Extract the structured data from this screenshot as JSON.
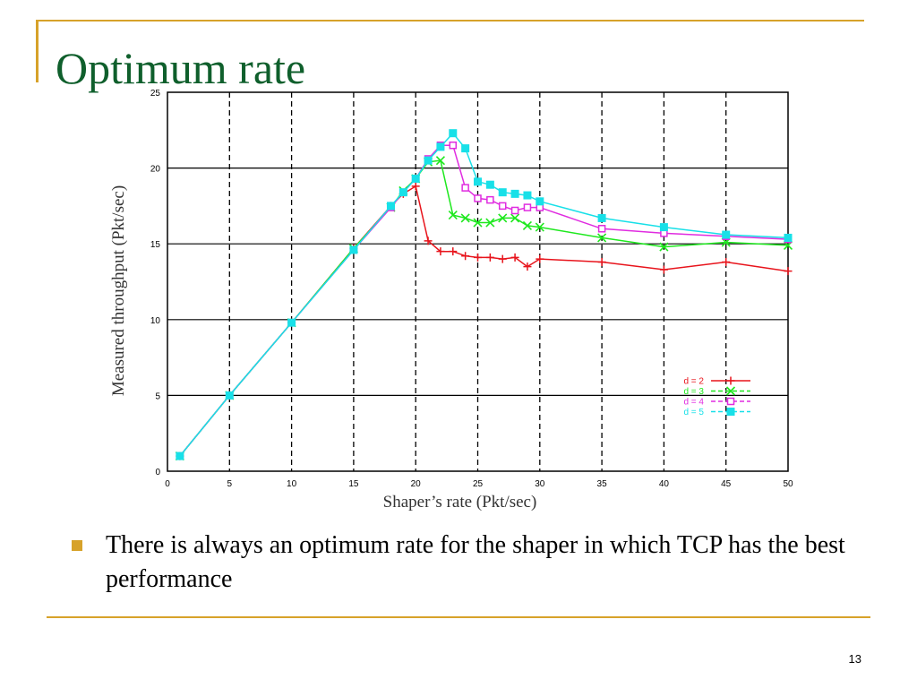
{
  "slide": {
    "title": "Optimum rate",
    "bullet": "There is always an optimum rate for the shaper in which TCP has the best performance",
    "page_number": "13",
    "accent_color": "#d7a22a",
    "title_color": "#0f5f2c"
  },
  "chart_data": {
    "type": "line",
    "title": "",
    "xlabel": "Shaper’s rate (Pkt/sec)",
    "ylabel": "Measured throughput (Pkt/sec)",
    "xlim": [
      0,
      50
    ],
    "ylim": [
      0,
      25
    ],
    "xticks": [
      "0",
      "5",
      "10",
      "15",
      "20",
      "25",
      "30",
      "35",
      "40",
      "45",
      "50"
    ],
    "yticks": [
      "0",
      "5",
      "10",
      "15",
      "20",
      "25"
    ],
    "grid": {
      "horizontal": "solid",
      "vertical": "dashed"
    },
    "legend_position": "bottom-right",
    "series": [
      {
        "name": "d = 2",
        "color": "#e8141c",
        "marker": "plus",
        "points": [
          [
            1,
            1
          ],
          [
            5,
            5
          ],
          [
            10,
            9.8
          ],
          [
            15,
            14.7
          ],
          [
            18,
            17.5
          ],
          [
            19,
            18.3
          ],
          [
            20,
            18.8
          ],
          [
            21,
            15.2
          ],
          [
            22,
            14.5
          ],
          [
            23,
            14.5
          ],
          [
            24,
            14.2
          ],
          [
            25,
            14.1
          ],
          [
            26,
            14.1
          ],
          [
            27,
            14
          ],
          [
            28,
            14.1
          ],
          [
            29,
            13.5
          ],
          [
            30,
            14
          ],
          [
            35,
            13.8
          ],
          [
            40,
            13.3
          ],
          [
            45,
            13.8
          ],
          [
            50,
            13.2
          ]
        ]
      },
      {
        "name": "d = 3",
        "color": "#1ee81e",
        "marker": "x",
        "points": [
          [
            1,
            1
          ],
          [
            5,
            5
          ],
          [
            10,
            9.8
          ],
          [
            15,
            14.7
          ],
          [
            18,
            17.4
          ],
          [
            19,
            18.5
          ],
          [
            20,
            19.3
          ],
          [
            21,
            20.4
          ],
          [
            22,
            20.5
          ],
          [
            23,
            16.9
          ],
          [
            24,
            16.7
          ],
          [
            25,
            16.4
          ],
          [
            26,
            16.4
          ],
          [
            27,
            16.7
          ],
          [
            28,
            16.7
          ],
          [
            29,
            16.2
          ],
          [
            30,
            16.1
          ],
          [
            35,
            15.4
          ],
          [
            40,
            14.8
          ],
          [
            45,
            15.1
          ],
          [
            50,
            14.9
          ]
        ]
      },
      {
        "name": "d = 4",
        "color": "#e02ce0",
        "marker": "square-open",
        "points": [
          [
            1,
            1
          ],
          [
            5,
            5
          ],
          [
            10,
            9.8
          ],
          [
            15,
            14.6
          ],
          [
            18,
            17.4
          ],
          [
            19,
            18.4
          ],
          [
            20,
            19.3
          ],
          [
            21,
            20.6
          ],
          [
            22,
            21.5
          ],
          [
            23,
            21.5
          ],
          [
            24,
            18.7
          ],
          [
            25,
            18
          ],
          [
            26,
            17.9
          ],
          [
            27,
            17.5
          ],
          [
            28,
            17.2
          ],
          [
            29,
            17.4
          ],
          [
            30,
            17.4
          ],
          [
            35,
            16
          ],
          [
            40,
            15.7
          ],
          [
            45,
            15.5
          ],
          [
            50,
            15.3
          ]
        ]
      },
      {
        "name": "d = 5",
        "color": "#18e0e8",
        "marker": "square-filled",
        "points": [
          [
            1,
            1
          ],
          [
            5,
            5
          ],
          [
            10,
            9.8
          ],
          [
            15,
            14.6
          ],
          [
            18,
            17.5
          ],
          [
            19,
            18.4
          ],
          [
            20,
            19.3
          ],
          [
            21,
            20.5
          ],
          [
            22,
            21.4
          ],
          [
            23,
            22.3
          ],
          [
            24,
            21.3
          ],
          [
            25,
            19.1
          ],
          [
            26,
            18.9
          ],
          [
            27,
            18.4
          ],
          [
            28,
            18.3
          ],
          [
            29,
            18.2
          ],
          [
            30,
            17.8
          ],
          [
            35,
            16.7
          ],
          [
            40,
            16.1
          ],
          [
            45,
            15.6
          ],
          [
            50,
            15.4
          ]
        ]
      }
    ]
  }
}
